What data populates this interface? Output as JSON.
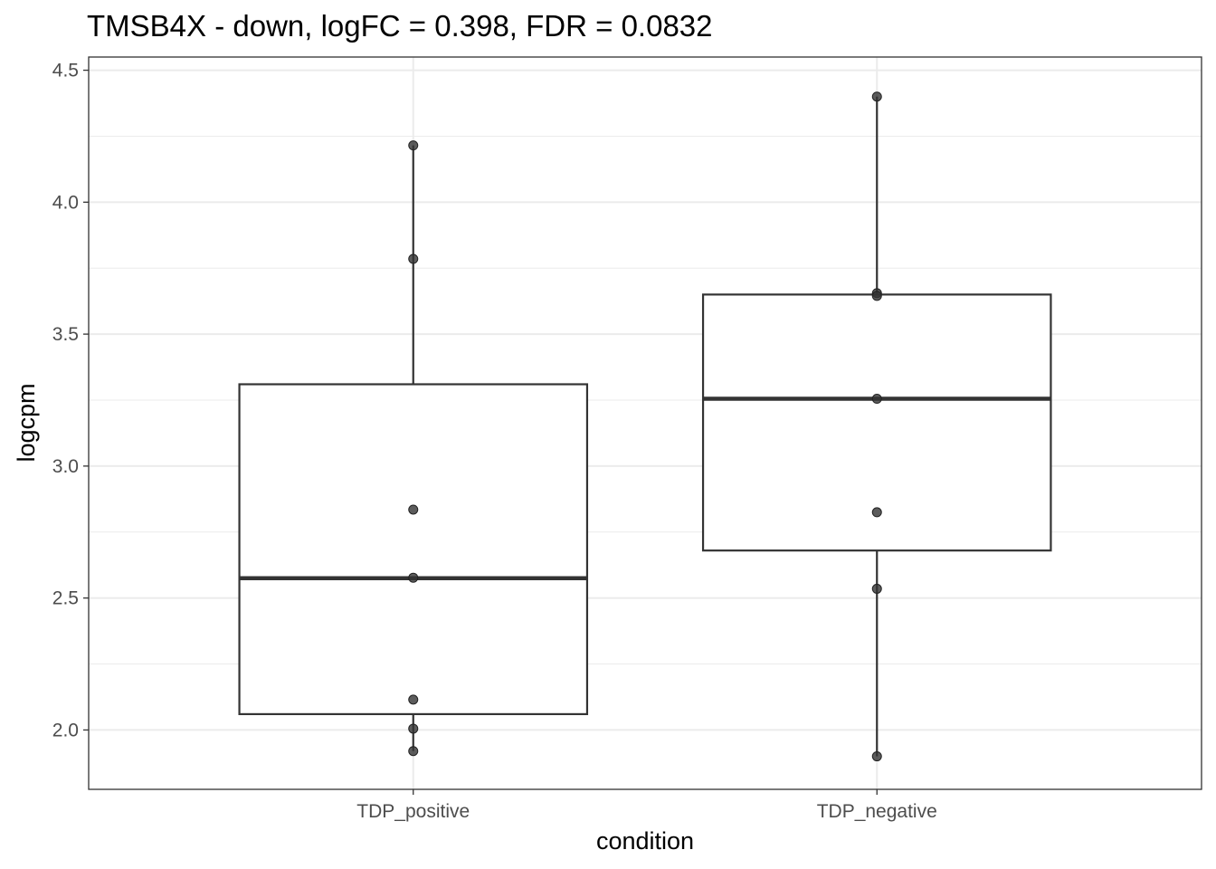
{
  "chart_data": {
    "type": "box",
    "title": "TMSB4X - down, logFC = 0.398, FDR = 0.0832",
    "xlabel": "condition",
    "ylabel": "logcpm",
    "categories": [
      "TDP_positive",
      "TDP_negative"
    ],
    "ylim": [
      1.775,
      4.55
    ],
    "yticks": [
      "2.0",
      "2.5",
      "3.0",
      "3.5",
      "4.0",
      "4.5"
    ],
    "grid": true,
    "boxes": [
      {
        "category": "TDP_positive",
        "whisker_low": 1.92,
        "q1": 2.06,
        "median": 2.575,
        "q3": 3.31,
        "whisker_high": 4.215,
        "points": [
          4.215,
          3.785,
          2.835,
          2.577,
          2.115,
          2.005,
          1.92
        ]
      },
      {
        "category": "TDP_negative",
        "whisker_low": 1.9,
        "q1": 2.68,
        "median": 3.255,
        "q3": 3.65,
        "whisker_high": 4.4,
        "points": [
          4.4,
          3.655,
          3.645,
          3.255,
          2.825,
          2.535,
          1.9
        ]
      }
    ],
    "colors": {
      "box_stroke": "#333333",
      "point_fill": "#333333",
      "grid": "#ebebeb",
      "panel_border": "#333333"
    }
  }
}
